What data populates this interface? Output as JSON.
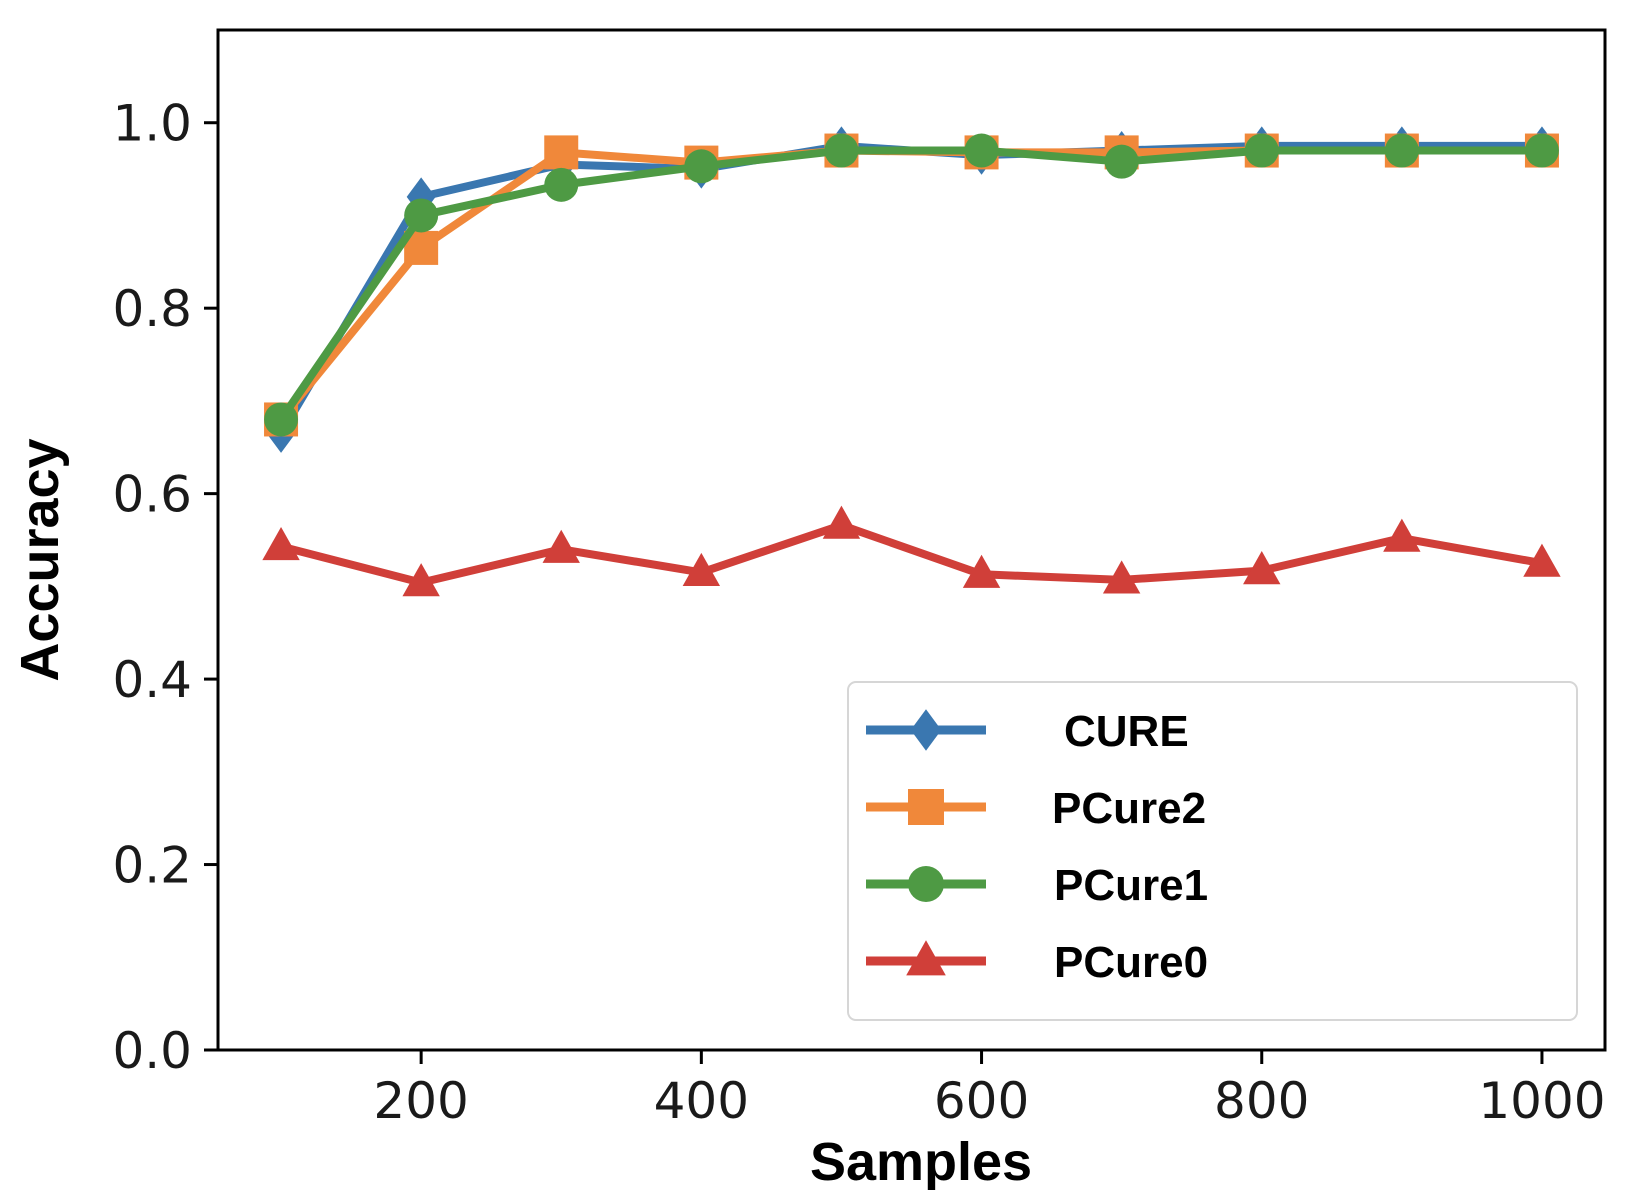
{
  "chart_data": {
    "type": "line",
    "title": "",
    "xlabel": "Samples",
    "ylabel": "Accuracy",
    "x": [
      100,
      200,
      300,
      400,
      500,
      600,
      700,
      800,
      900,
      1000
    ],
    "xlim": [
      55,
      1045
    ],
    "ylim": [
      0.0,
      1.1
    ],
    "xticks": [
      200,
      400,
      600,
      800,
      1000
    ],
    "xtick_labels": [
      "200",
      "400",
      "600",
      "800",
      "1000"
    ],
    "yticks": [
      0.0,
      0.2,
      0.4,
      0.6,
      0.8,
      1.0
    ],
    "ytick_labels": [
      "0.0",
      "0.2",
      "0.4",
      "0.6",
      "0.8",
      "1.0"
    ],
    "grid": false,
    "legend_position": "lower-right",
    "series": [
      {
        "name": "CURE",
        "color": "#3a77b0",
        "marker": "diamond",
        "values": [
          0.665,
          0.92,
          0.955,
          0.95,
          0.975,
          0.965,
          0.97,
          0.975,
          0.975,
          0.975
        ]
      },
      {
        "name": "PCure2",
        "color": "#f0883a",
        "marker": "square",
        "values": [
          0.68,
          0.865,
          0.968,
          0.957,
          0.97,
          0.968,
          0.968,
          0.97,
          0.97,
          0.97
        ]
      },
      {
        "name": "PCure1",
        "color": "#4e9a44",
        "marker": "circle",
        "values": [
          0.68,
          0.9,
          0.933,
          0.953,
          0.97,
          0.97,
          0.958,
          0.97,
          0.97,
          0.97
        ]
      },
      {
        "name": "PCure0",
        "color": "#d03f39",
        "marker": "triangle",
        "values": [
          0.543,
          0.504,
          0.54,
          0.515,
          0.566,
          0.513,
          0.507,
          0.517,
          0.552,
          0.525
        ]
      }
    ]
  }
}
